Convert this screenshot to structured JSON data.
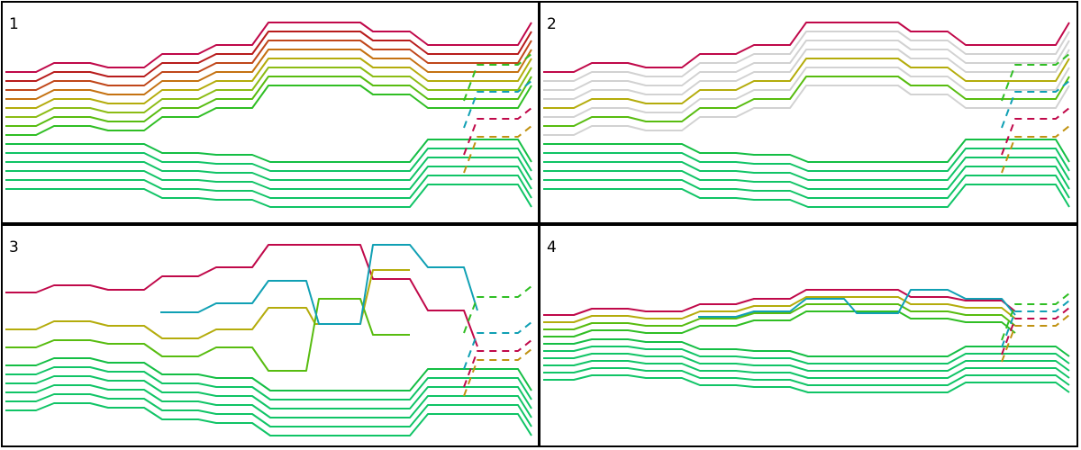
{
  "panels": [
    {
      "label": "1"
    },
    {
      "label": "2"
    },
    {
      "label": "3"
    },
    {
      "label": "4"
    }
  ],
  "colors": {
    "crimson": "#c0094a",
    "darkred": "#b81c1c",
    "rust": "#c0471a",
    "orange": "#c57212",
    "amber": "#c09212",
    "olive": "#b4ac0c",
    "yellowgreen": "#8cbc14",
    "lime": "#58bc10",
    "green": "#30be24",
    "emerald": "#14be44",
    "seagreen": "#10c466",
    "teal": "#10a0b4",
    "cyan": "#18a8c8",
    "blue": "#1070c0",
    "grey": "#d2d2d2"
  }
}
